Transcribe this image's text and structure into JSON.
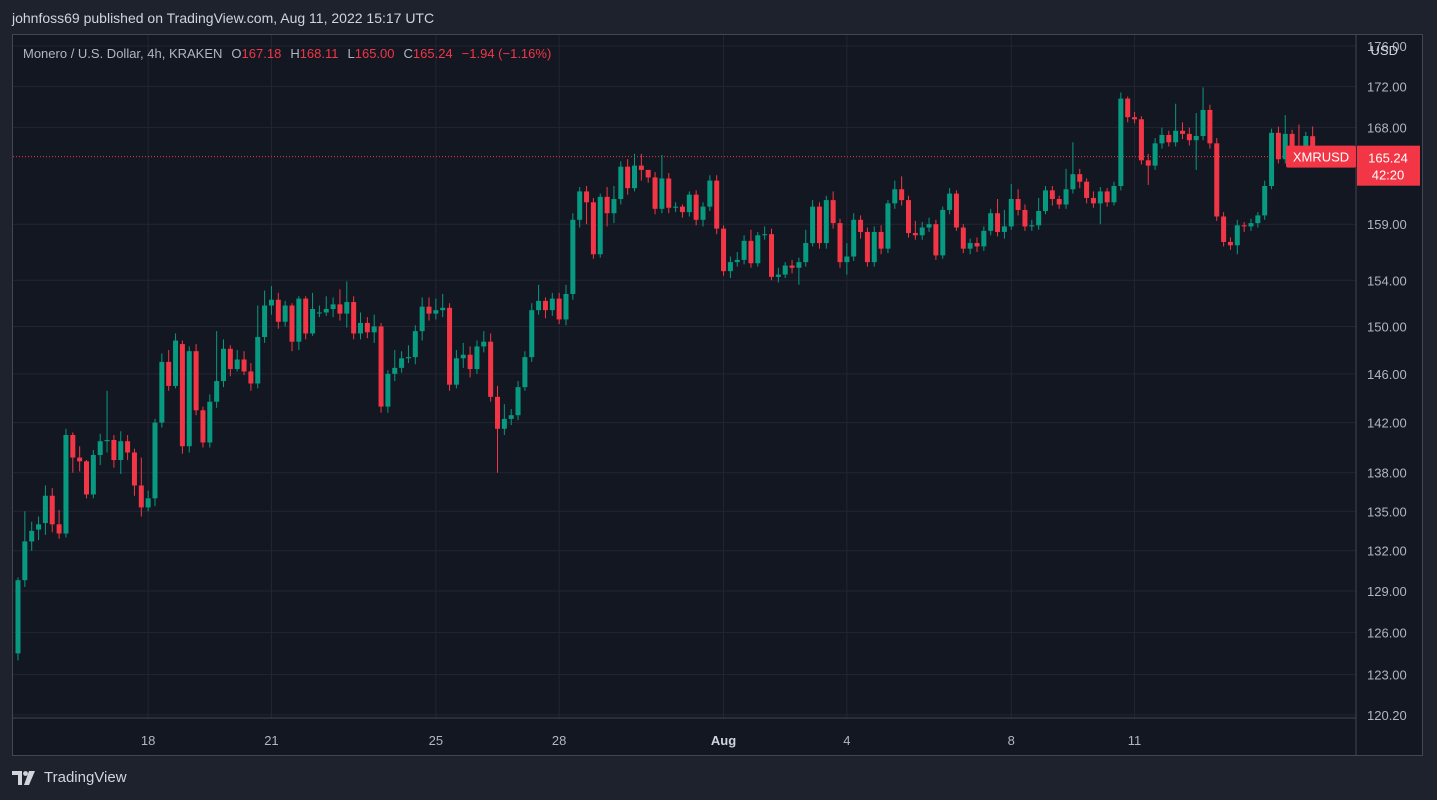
{
  "publish_line": "johnfoss69 published on TradingView.com, Aug 11, 2022 15:17 UTC",
  "legend": {
    "symbol": "Monero / U.S. Dollar, 4h, KRAKEN",
    "open_label": "O",
    "open": "167.18",
    "high_label": "H",
    "high": "168.11",
    "low_label": "L",
    "low": "165.00",
    "close_label": "C",
    "close": "165.24",
    "change": "−1.94 (−1.16%)"
  },
  "axis_currency": "USD",
  "price_tag": {
    "ticker": "XMRUSD",
    "price": "165.24",
    "countdown": "42:20"
  },
  "footer_brand": "TradingView",
  "colors": {
    "up": "#089981",
    "down": "#f23645",
    "background": "#131722",
    "grid": "#232632",
    "text": "#b2b5be"
  },
  "chart_data": {
    "type": "candlestick",
    "title": "Monero / U.S. Dollar, 4h, KRAKEN",
    "y_scale": "log",
    "y_range": [
      120.2,
      176.0
    ],
    "y_ticks": [
      "176.00",
      "172.00",
      "168.00",
      "159.00",
      "154.00",
      "150.00",
      "146.00",
      "142.00",
      "138.00",
      "135.00",
      "132.00",
      "129.00",
      "126.00",
      "123.00",
      "120.20"
    ],
    "x_ticks": [
      {
        "label": "18",
        "bar": 19
      },
      {
        "label": "21",
        "bar": 37
      },
      {
        "label": "25",
        "bar": 61
      },
      {
        "label": "28",
        "bar": 79
      },
      {
        "label": "Aug",
        "bar": 103,
        "bold": true
      },
      {
        "label": "4",
        "bar": 121
      },
      {
        "label": "8",
        "bar": 145
      },
      {
        "label": "11",
        "bar": 163
      }
    ],
    "last_price": 165.24,
    "bar_width_hours": 4,
    "candles": [
      [
        124.5,
        129.8,
        124.0,
        130.0
      ],
      [
        129.8,
        132.7,
        129.3,
        135.0
      ],
      [
        132.7,
        133.5,
        132.0,
        134.2
      ],
      [
        133.6,
        134.0,
        132.8,
        134.6
      ],
      [
        134.1,
        136.2,
        133.2,
        137.0
      ],
      [
        136.2,
        134.0,
        133.4,
        136.8
      ],
      [
        134.0,
        133.3,
        132.9,
        135.1
      ],
      [
        133.3,
        141.0,
        133.0,
        141.5
      ],
      [
        141.0,
        139.2,
        138.0,
        141.2
      ],
      [
        139.2,
        138.9,
        138.1,
        140.1
      ],
      [
        138.9,
        136.3,
        136.0,
        139.0
      ],
      [
        136.3,
        139.4,
        136.0,
        139.8
      ],
      [
        139.4,
        140.5,
        138.6,
        141.1
      ],
      [
        140.5,
        140.6,
        139.6,
        144.6
      ],
      [
        140.6,
        139.0,
        138.4,
        141.0
      ],
      [
        139.0,
        140.5,
        137.9,
        141.3
      ],
      [
        140.5,
        139.6,
        139.0,
        141.0
      ],
      [
        139.6,
        137.0,
        136.2,
        139.9
      ],
      [
        137.0,
        135.3,
        134.6,
        139.2
      ],
      [
        135.3,
        136.0,
        135.0,
        136.6
      ],
      [
        136.0,
        142.0,
        135.4,
        142.3
      ],
      [
        142.0,
        147.0,
        141.6,
        147.7
      ],
      [
        147.0,
        145.0,
        144.6,
        148.0
      ],
      [
        145.0,
        148.8,
        144.8,
        149.4
      ],
      [
        148.5,
        140.1,
        139.5,
        148.8
      ],
      [
        140.1,
        147.9,
        139.6,
        148.3
      ],
      [
        147.9,
        143.0,
        142.6,
        148.5
      ],
      [
        143.0,
        140.4,
        140.0,
        143.3
      ],
      [
        140.4,
        143.7,
        140.0,
        144.3
      ],
      [
        143.7,
        145.4,
        143.2,
        149.6
      ],
      [
        145.4,
        148.1,
        144.9,
        148.9
      ],
      [
        148.1,
        146.4,
        145.8,
        148.4
      ],
      [
        146.4,
        147.2,
        146.2,
        148.0
      ],
      [
        147.2,
        146.2,
        145.9,
        147.9
      ],
      [
        146.2,
        145.2,
        144.6,
        146.9
      ],
      [
        145.2,
        149.1,
        144.8,
        151.8
      ],
      [
        149.1,
        151.8,
        148.6,
        153.1
      ],
      [
        151.8,
        152.3,
        151.0,
        153.5
      ],
      [
        152.3,
        150.4,
        149.8,
        152.9
      ],
      [
        150.4,
        151.8,
        150.0,
        152.2
      ],
      [
        151.8,
        148.7,
        147.9,
        152.0
      ],
      [
        148.7,
        152.4,
        148.0,
        152.6
      ],
      [
        152.4,
        149.4,
        148.9,
        152.6
      ],
      [
        149.4,
        151.5,
        149.2,
        152.9
      ],
      [
        151.2,
        151.2,
        150.8,
        151.8
      ],
      [
        151.2,
        151.5,
        150.9,
        152.6
      ],
      [
        151.5,
        151.9,
        150.8,
        152.5
      ],
      [
        151.9,
        151.1,
        150.5,
        153.2
      ],
      [
        151.1,
        152.1,
        149.9,
        153.9
      ],
      [
        152.1,
        149.4,
        148.9,
        152.6
      ],
      [
        149.4,
        150.3,
        148.9,
        151.2
      ],
      [
        150.3,
        149.5,
        149.0,
        150.8
      ],
      [
        149.5,
        150.0,
        148.6,
        151.0
      ],
      [
        150.0,
        143.3,
        142.8,
        150.3
      ],
      [
        143.3,
        146.0,
        142.8,
        146.3
      ],
      [
        146.0,
        146.5,
        145.4,
        148.0
      ],
      [
        146.5,
        147.3,
        146.1,
        147.9
      ],
      [
        147.3,
        147.4,
        146.9,
        148.4
      ],
      [
        147.4,
        149.6,
        146.8,
        150.1
      ],
      [
        149.6,
        151.7,
        148.8,
        152.5
      ],
      [
        151.7,
        151.1,
        150.5,
        152.5
      ],
      [
        151.1,
        151.4,
        150.6,
        152.4
      ],
      [
        151.4,
        151.6,
        150.8,
        152.8
      ],
      [
        151.6,
        145.1,
        144.6,
        152.0
      ],
      [
        145.1,
        147.3,
        144.8,
        148.0
      ],
      [
        147.3,
        147.6,
        146.5,
        148.6
      ],
      [
        147.6,
        146.4,
        145.7,
        148.3
      ],
      [
        146.4,
        148.3,
        146.0,
        148.8
      ],
      [
        148.3,
        148.7,
        147.8,
        149.6
      ],
      [
        148.7,
        144.1,
        143.7,
        149.4
      ],
      [
        144.1,
        141.5,
        138.0,
        145.0
      ],
      [
        141.5,
        142.3,
        141.0,
        143.5
      ],
      [
        142.3,
        142.6,
        141.8,
        143.1
      ],
      [
        142.6,
        144.9,
        142.2,
        145.4
      ],
      [
        144.9,
        147.4,
        144.6,
        147.9
      ],
      [
        147.4,
        151.4,
        147.0,
        152.0
      ],
      [
        151.4,
        152.2,
        151.0,
        153.6
      ],
      [
        152.2,
        151.4,
        150.7,
        152.5
      ],
      [
        151.4,
        152.4,
        150.9,
        152.9
      ],
      [
        152.4,
        150.6,
        150.2,
        152.9
      ],
      [
        150.6,
        152.8,
        150.1,
        153.6
      ],
      [
        152.8,
        159.4,
        152.3,
        160.0
      ],
      [
        159.4,
        162.0,
        158.7,
        162.4
      ],
      [
        162.0,
        161.0,
        159.0,
        162.5
      ],
      [
        161.0,
        156.3,
        155.9,
        161.4
      ],
      [
        156.3,
        161.5,
        156.0,
        161.8
      ],
      [
        161.5,
        160.0,
        158.8,
        162.4
      ],
      [
        160.0,
        161.3,
        159.1,
        162.5
      ],
      [
        161.3,
        164.3,
        160.8,
        164.8
      ],
      [
        164.3,
        162.3,
        161.7,
        165.0
      ],
      [
        162.3,
        164.4,
        162.0,
        165.5
      ],
      [
        164.4,
        164.0,
        163.0,
        165.5
      ],
      [
        164.0,
        163.3,
        162.8,
        163.9
      ],
      [
        163.3,
        160.4,
        159.9,
        163.8
      ],
      [
        160.4,
        163.2,
        160.0,
        165.4
      ],
      [
        163.2,
        160.5,
        160.0,
        163.7
      ],
      [
        160.5,
        160.6,
        160.1,
        161.0
      ],
      [
        160.6,
        160.1,
        159.6,
        160.8
      ],
      [
        160.1,
        161.7,
        159.7,
        162.0
      ],
      [
        161.7,
        159.4,
        158.9,
        162.1
      ],
      [
        159.4,
        160.6,
        158.8,
        161.0
      ],
      [
        160.6,
        163.0,
        160.2,
        163.5
      ],
      [
        163.0,
        158.6,
        158.1,
        163.5
      ],
      [
        158.6,
        154.8,
        154.4,
        158.9
      ],
      [
        154.8,
        155.6,
        154.2,
        156.1
      ],
      [
        155.6,
        155.8,
        155.2,
        156.5
      ],
      [
        155.8,
        157.5,
        155.4,
        158.0
      ],
      [
        157.5,
        155.5,
        155.1,
        158.5
      ],
      [
        155.5,
        158.0,
        155.2,
        158.3
      ],
      [
        158.0,
        158.1,
        157.6,
        158.8
      ],
      [
        158.1,
        154.3,
        154.0,
        158.6
      ],
      [
        154.3,
        154.5,
        153.8,
        155.1
      ],
      [
        154.5,
        155.3,
        154.2,
        155.6
      ],
      [
        155.3,
        155.1,
        154.6,
        155.8
      ],
      [
        155.1,
        155.6,
        153.6,
        156.0
      ],
      [
        155.6,
        157.3,
        155.2,
        158.5
      ],
      [
        157.3,
        160.6,
        157.0,
        161.2
      ],
      [
        160.6,
        157.3,
        156.8,
        161.0
      ],
      [
        157.3,
        161.2,
        156.8,
        161.6
      ],
      [
        161.2,
        159.1,
        158.6,
        162.0
      ],
      [
        159.1,
        155.6,
        155.1,
        159.5
      ],
      [
        155.6,
        156.1,
        154.5,
        157.3
      ],
      [
        156.1,
        159.4,
        155.7,
        160.0
      ],
      [
        159.4,
        158.3,
        157.7,
        159.8
      ],
      [
        158.3,
        155.6,
        155.2,
        158.7
      ],
      [
        155.6,
        158.3,
        155.2,
        158.8
      ],
      [
        158.3,
        156.8,
        156.3,
        158.9
      ],
      [
        156.8,
        160.9,
        156.4,
        161.2
      ],
      [
        160.9,
        162.2,
        160.4,
        163.0
      ],
      [
        162.2,
        161.2,
        160.7,
        163.4
      ],
      [
        161.2,
        158.2,
        157.8,
        161.6
      ],
      [
        158.2,
        158.0,
        157.6,
        159.3
      ],
      [
        158.0,
        158.7,
        157.6,
        159.2
      ],
      [
        158.7,
        159.0,
        158.3,
        159.6
      ],
      [
        159.0,
        156.2,
        155.8,
        159.4
      ],
      [
        156.2,
        160.3,
        155.9,
        160.6
      ],
      [
        160.3,
        161.8,
        159.9,
        162.3
      ],
      [
        161.8,
        158.7,
        158.4,
        162.1
      ],
      [
        158.7,
        156.8,
        156.4,
        159.0
      ],
      [
        156.8,
        157.3,
        156.3,
        157.7
      ],
      [
        157.3,
        157.0,
        156.5,
        157.8
      ],
      [
        157.0,
        158.4,
        156.6,
        158.8
      ],
      [
        158.4,
        160.0,
        158.0,
        160.4
      ],
      [
        160.0,
        158.3,
        157.9,
        161.3
      ],
      [
        158.3,
        158.8,
        157.7,
        160.3
      ],
      [
        158.8,
        161.3,
        158.5,
        162.7
      ],
      [
        161.3,
        160.3,
        159.8,
        162.2
      ],
      [
        160.3,
        158.8,
        158.4,
        160.8
      ],
      [
        158.8,
        158.9,
        158.4,
        159.4
      ],
      [
        158.9,
        160.2,
        158.5,
        161.4
      ],
      [
        160.2,
        162.1,
        159.9,
        162.5
      ],
      [
        162.1,
        161.3,
        160.7,
        162.5
      ],
      [
        161.3,
        160.8,
        160.4,
        161.6
      ],
      [
        160.8,
        162.2,
        160.4,
        164.1
      ],
      [
        162.2,
        163.6,
        161.8,
        166.6
      ],
      [
        163.6,
        162.9,
        162.3,
        164.1
      ],
      [
        162.9,
        161.4,
        160.9,
        163.2
      ],
      [
        161.4,
        160.9,
        160.5,
        162.0
      ],
      [
        160.9,
        162.0,
        159.0,
        162.4
      ],
      [
        162.0,
        161.0,
        160.6,
        162.3
      ],
      [
        161.0,
        162.5,
        160.7,
        162.9
      ],
      [
        162.5,
        170.8,
        162.1,
        171.4
      ],
      [
        170.8,
        169.0,
        168.5,
        171.0
      ],
      [
        169.0,
        168.8,
        168.4,
        169.5
      ],
      [
        168.8,
        164.9,
        164.5,
        169.1
      ],
      [
        164.9,
        164.4,
        162.6,
        165.5
      ],
      [
        164.4,
        166.5,
        164.0,
        167.0
      ],
      [
        166.5,
        167.3,
        166.0,
        168.0
      ],
      [
        167.3,
        166.6,
        166.2,
        167.7
      ],
      [
        166.6,
        167.7,
        166.2,
        170.3
      ],
      [
        167.7,
        167.4,
        166.9,
        168.5
      ],
      [
        167.4,
        166.8,
        166.3,
        168.0
      ],
      [
        166.8,
        167.2,
        164.0,
        169.4
      ],
      [
        167.2,
        169.7,
        166.8,
        171.9
      ],
      [
        169.7,
        166.5,
        166.0,
        170.2
      ],
      [
        166.5,
        159.7,
        159.3,
        167.0
      ],
      [
        159.7,
        157.4,
        157.0,
        160.1
      ],
      [
        157.4,
        157.1,
        156.7,
        157.8
      ],
      [
        157.1,
        158.9,
        156.3,
        159.4
      ],
      [
        158.9,
        158.8,
        158.3,
        159.2
      ],
      [
        158.8,
        159.1,
        158.4,
        159.5
      ],
      [
        159.1,
        159.8,
        158.7,
        160.1
      ],
      [
        159.8,
        162.5,
        159.4,
        163.0
      ],
      [
        162.5,
        167.5,
        162.2,
        167.9
      ],
      [
        167.5,
        165.0,
        164.6,
        168.1
      ],
      [
        165.0,
        167.4,
        164.6,
        169.2
      ],
      [
        167.4,
        166.1,
        165.8,
        167.8
      ],
      [
        166.1,
        165.2,
        164.8,
        168.3
      ],
      [
        165.2,
        167.2,
        164.7,
        167.6
      ],
      [
        167.18,
        165.24,
        165.0,
        168.11
      ]
    ]
  }
}
